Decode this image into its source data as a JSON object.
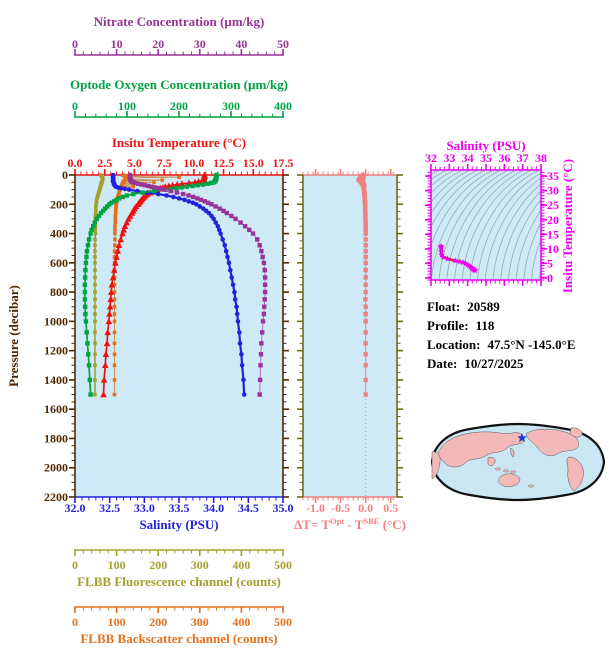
{
  "info": {
    "lines": [
      {
        "label": "Float:",
        "value": "20589"
      },
      {
        "label": "Profile:",
        "value": "118"
      },
      {
        "label": "Location:",
        "value": "47.5°N  -145.0°E"
      },
      {
        "label": "Date:",
        "value": "10/27/2025"
      }
    ]
  },
  "axes": {
    "nitrate": {
      "title": "Nitrate Concentration (µm/kg)",
      "color": "#993399",
      "range": [
        0,
        50
      ],
      "tick_values": [
        0,
        10,
        20,
        30,
        40,
        50
      ],
      "tick_labels": [
        "0",
        "10",
        "20",
        "30",
        "40",
        "50"
      ],
      "minor_step": 2
    },
    "oxygen": {
      "title": "Optode Oxygen Concentration (µm/kg)",
      "color": "#00a344",
      "range": [
        0,
        400
      ],
      "tick_values": [
        0,
        100,
        200,
        300,
        400
      ],
      "tick_labels": [
        "0",
        "100",
        "200",
        "300",
        "400"
      ],
      "minor_step": 20
    },
    "temperature": {
      "title": "Insitu Temperature (°C)",
      "color": "#ee1111",
      "range": [
        0,
        17.5
      ],
      "tick_values": [
        0,
        2.5,
        5,
        7.5,
        10,
        12.5,
        15,
        17.5
      ],
      "tick_labels": [
        "0.0",
        "2.5",
        "5.0",
        "7.5",
        "10.0",
        "12.5",
        "15.0",
        "17.5"
      ],
      "minor_step": 0.5
    },
    "pressure": {
      "title": "Pressure (decibar)",
      "color": "#4d2800",
      "range": [
        0,
        2200
      ],
      "tick_values": [
        0,
        200,
        400,
        600,
        800,
        1000,
        1200,
        1400,
        1600,
        1800,
        2000,
        2200
      ],
      "tick_labels": [
        "0",
        "200",
        "400",
        "600",
        "800",
        "1000",
        "1200",
        "1400",
        "1600",
        "1800",
        "2000",
        "2200"
      ],
      "minor_step": 50
    },
    "salinity": {
      "title": "Salinity (PSU)",
      "color": "#2222dd",
      "range": [
        32,
        35
      ],
      "tick_values": [
        32,
        32.5,
        33,
        33.5,
        34,
        34.5,
        35
      ],
      "tick_labels": [
        "32.0",
        "32.5",
        "33.0",
        "33.5",
        "34.0",
        "34.5",
        "35.0"
      ],
      "minor_step": 0.1
    },
    "fluorescence": {
      "title": "FLBB Fluorescence channel (counts)",
      "color": "#a4a030",
      "range": [
        0,
        500
      ],
      "tick_values": [
        0,
        100,
        200,
        300,
        400,
        500
      ],
      "tick_labels": [
        "0",
        "100",
        "200",
        "300",
        "400",
        "500"
      ],
      "minor_step": 20
    },
    "backscatter": {
      "title": "FLBB Backscatter channel (counts)",
      "color": "#e5701a",
      "range": [
        0,
        500
      ],
      "tick_values": [
        0,
        100,
        200,
        300,
        400,
        500
      ],
      "tick_labels": [
        "0",
        "100",
        "200",
        "300",
        "400",
        "500"
      ],
      "minor_step": 20
    },
    "delta_t": {
      "color": "#f08080",
      "side_color": "#6b6b14",
      "title_parts": {
        "t1": "ΔT= T",
        "sup1": "Opt",
        "t2": " - T",
        "sup2": "SBE",
        "t3": " (°C)"
      },
      "range": [
        -1.25,
        0.625
      ],
      "tick_values": [
        -1,
        -0.5,
        0,
        0.5
      ],
      "tick_labels": [
        "-1.0",
        "-0.5",
        "0.0",
        "0.5"
      ],
      "minor_step": 0.1
    },
    "ts_salinity": {
      "title": "Salinity (PSU)",
      "color": "#ee00ee",
      "range": [
        32,
        38
      ],
      "tick_values": [
        32,
        33,
        34,
        35,
        36,
        37,
        38
      ],
      "tick_labels": [
        "32",
        "33",
        "34",
        "35",
        "36",
        "37",
        "38"
      ],
      "minor_step": 0.25
    },
    "ts_temperature": {
      "title": "Insitu Temperature (°C)",
      "color": "#ee00ee",
      "range": [
        -0.7,
        37.1
      ],
      "tick_values": [
        0,
        5,
        10,
        15,
        20,
        25,
        30,
        35
      ],
      "tick_labels": [
        "0",
        "5",
        "10",
        "15",
        "20",
        "25",
        "30",
        "35"
      ],
      "minor_step": 1
    }
  },
  "panel_bg": "#cdeaf6",
  "chart_data": [
    {
      "type": "line",
      "title": "Profile vs pressure (multi-axis)",
      "ylabel": "Pressure (decibar)",
      "ylim": [
        0,
        2200
      ],
      "pressure_dbar": [
        0,
        5,
        10,
        15,
        20,
        25,
        30,
        35,
        40,
        45,
        50,
        55,
        60,
        65,
        70,
        75,
        80,
        85,
        90,
        95,
        100,
        110,
        120,
        130,
        140,
        150,
        160,
        170,
        180,
        190,
        200,
        215,
        230,
        245,
        260,
        280,
        300,
        325,
        350,
        375,
        400,
        440,
        480,
        520,
        560,
        600,
        650,
        700,
        750,
        800,
        850,
        900,
        950,
        1000,
        1075,
        1150,
        1225,
        1300,
        1400,
        1500
      ],
      "series": [
        {
          "name": "Salinity (PSU)",
          "color": "#2222dd",
          "axis_range": [
            32,
            35
          ],
          "marker": "dot",
          "values": [
            32.55,
            32.55,
            32.55,
            32.55,
            32.55,
            32.55,
            32.55,
            32.55,
            32.55,
            32.55,
            32.56,
            32.56,
            32.56,
            32.57,
            32.57,
            32.58,
            32.59,
            32.62,
            32.66,
            32.72,
            32.78,
            32.9,
            33.05,
            33.2,
            33.32,
            33.42,
            33.5,
            33.58,
            33.64,
            33.7,
            33.75,
            33.8,
            33.85,
            33.89,
            33.93,
            33.97,
            34.0,
            34.03,
            34.06,
            34.08,
            34.1,
            34.13,
            34.16,
            34.18,
            34.2,
            34.22,
            34.24,
            34.26,
            34.28,
            34.3,
            34.31,
            34.33,
            34.34,
            34.35,
            34.37,
            34.38,
            34.4,
            34.41,
            34.43,
            34.44
          ]
        },
        {
          "name": "Insitu Temperature (°C)",
          "color": "#ee1111",
          "axis_range": [
            0,
            17.5
          ],
          "marker": "tri",
          "values": [
            10.9,
            10.9,
            10.88,
            10.85,
            10.85,
            10.82,
            10.8,
            10.75,
            10.7,
            10.4,
            10.1,
            9.6,
            9.0,
            8.6,
            8.2,
            7.9,
            7.6,
            7.4,
            7.2,
            7.05,
            6.9,
            6.6,
            6.35,
            6.1,
            5.95,
            5.8,
            5.7,
            5.6,
            5.5,
            5.4,
            5.3,
            5.15,
            5.0,
            4.9,
            4.8,
            4.65,
            4.5,
            4.35,
            4.2,
            4.1,
            4.0,
            3.85,
            3.7,
            3.6,
            3.5,
            3.4,
            3.3,
            3.2,
            3.1,
            3.05,
            3.0,
            2.95,
            2.9,
            2.85,
            2.75,
            2.7,
            2.6,
            2.55,
            2.45,
            2.4
          ]
        },
        {
          "name": "Optode Oxygen Concentration (µm/kg)",
          "color": "#00a344",
          "axis_range": [
            0,
            400
          ],
          "marker": "sq",
          "values": [
            272,
            272,
            272,
            272,
            272,
            271,
            271,
            270,
            270,
            269,
            267,
            262,
            255,
            246,
            236,
            226,
            215,
            205,
            195,
            185,
            175,
            152,
            130,
            112,
            100,
            92,
            85,
            80,
            75,
            70,
            66,
            62,
            58,
            54,
            50,
            46,
            42,
            38,
            35,
            32,
            30,
            27,
            25,
            23,
            22,
            21,
            20,
            19.5,
            19,
            19,
            19,
            19.5,
            20,
            21,
            22.5,
            24,
            25.5,
            27,
            28.5,
            30
          ]
        },
        {
          "name": "Nitrate Concentration (µm/kg)",
          "color": "#993399",
          "axis_range": [
            0,
            50
          ],
          "marker": "sq",
          "values": [
            13.2,
            13.2,
            13.2,
            13.25,
            13.3,
            13.3,
            13.35,
            13.4,
            13.5,
            13.7,
            14.0,
            14.5,
            15.2,
            16.0,
            16.8,
            17.6,
            18.4,
            19.2,
            20.0,
            20.8,
            21.5,
            23.0,
            24.5,
            26.0,
            27.3,
            28.4,
            29.4,
            30.3,
            31.2,
            32.0,
            32.8,
            33.8,
            34.8,
            35.7,
            36.5,
            37.6,
            38.6,
            39.8,
            40.9,
            41.9,
            42.8,
            43.8,
            44.4,
            44.8,
            45.1,
            45.4,
            45.6,
            45.7,
            45.7,
            45.7,
            45.6,
            45.5,
            45.4,
            45.2,
            45.0,
            44.8,
            44.7,
            44.6,
            44.5,
            44.4
          ]
        },
        {
          "name": "FLBB Fluorescence channel (counts)",
          "color": "#a4a030",
          "axis_range": [
            0,
            500
          ],
          "marker": "sq",
          "values": [
            62,
            64,
            65,
            66,
            66,
            67,
            66,
            66,
            65,
            65,
            64,
            64,
            63,
            63,
            62,
            62,
            61,
            61,
            60,
            60,
            59,
            58,
            57,
            56,
            55,
            54,
            53,
            52,
            52,
            51,
            51,
            50,
            50,
            50,
            50,
            49,
            49,
            49,
            49,
            49,
            49,
            48,
            48,
            48,
            48,
            48,
            48,
            48,
            48,
            48,
            48,
            48,
            48,
            48,
            48,
            48,
            48,
            48,
            48,
            48
          ]
        },
        {
          "name": "FLBB Backscatter channel (counts)",
          "color": "#e5701a",
          "axis_range": [
            0,
            500
          ],
          "marker": "sq",
          "values": [
            115,
            118,
            122,
            250,
            130,
            124,
            120,
            210,
            118,
            116,
            190,
            115,
            114,
            160,
            113,
            112,
            140,
            111,
            110,
            109,
            108,
            107,
            106,
            105,
            104,
            103,
            102,
            101,
            100,
            100,
            99,
            99,
            98,
            98,
            98,
            97,
            97,
            97,
            96,
            96,
            96,
            96,
            96,
            95,
            95,
            95,
            95,
            95,
            95,
            95,
            95,
            95,
            95,
            95,
            95,
            95,
            95,
            95,
            95,
            95
          ]
        }
      ]
    },
    {
      "type": "scatter",
      "title": "Optode minus SBE temperature difference vs pressure",
      "xlabel": "ΔT= T(Opt) - T(SBE) (°C)",
      "xlim": [
        -1.25,
        0.625
      ],
      "ylim": [
        0,
        2200
      ],
      "pressure_dbar": [
        0,
        5,
        10,
        15,
        20,
        25,
        30,
        35,
        40,
        45,
        50,
        55,
        60,
        65,
        70,
        75,
        80,
        85,
        90,
        95,
        100,
        110,
        120,
        130,
        140,
        150,
        160,
        170,
        180,
        190,
        200,
        215,
        230,
        245,
        260,
        280,
        300,
        325,
        350,
        375,
        400,
        440,
        480,
        520,
        560,
        600,
        650,
        700,
        750,
        800,
        850,
        900,
        950,
        1000,
        1075,
        1150,
        1225,
        1300,
        1400,
        1500
      ],
      "values": [
        -0.05,
        -0.08,
        -0.04,
        -0.1,
        -0.06,
        -0.12,
        -0.07,
        -0.14,
        -0.06,
        -0.1,
        -0.05,
        -0.08,
        -0.04,
        -0.06,
        -0.03,
        -0.05,
        -0.03,
        -0.04,
        -0.03,
        -0.04,
        -0.03,
        -0.03,
        -0.02,
        -0.03,
        -0.02,
        -0.02,
        -0.02,
        -0.015,
        -0.015,
        -0.01,
        -0.01,
        -0.01,
        -0.01,
        -0.01,
        -0.005,
        -0.005,
        -0.005,
        0,
        0,
        0,
        0,
        0,
        0,
        0,
        0,
        0,
        0,
        0,
        0,
        0,
        -0.005,
        0,
        0,
        0,
        0,
        0,
        0,
        0,
        0,
        0
      ]
    },
    {
      "type": "line",
      "title": "T-S diagram with isopycnal contours",
      "xlabel": "Salinity (PSU)",
      "ylabel": "Insitu Temperature (°C)",
      "xlim": [
        32,
        38
      ],
      "ylim": [
        0,
        35
      ],
      "points_from": "salinity and temperature series of chart 0",
      "curve_color": "#e8103c",
      "marker_color": "#ee00ee",
      "isopycnals": true
    }
  ],
  "map": {
    "ocean_color": "#c9e6f2",
    "land_color": "#f3b8b8",
    "outline_color": "#111111",
    "star_color": "#2233dd",
    "star": {
      "fx": 0.523,
      "fy": 0.184
    }
  }
}
